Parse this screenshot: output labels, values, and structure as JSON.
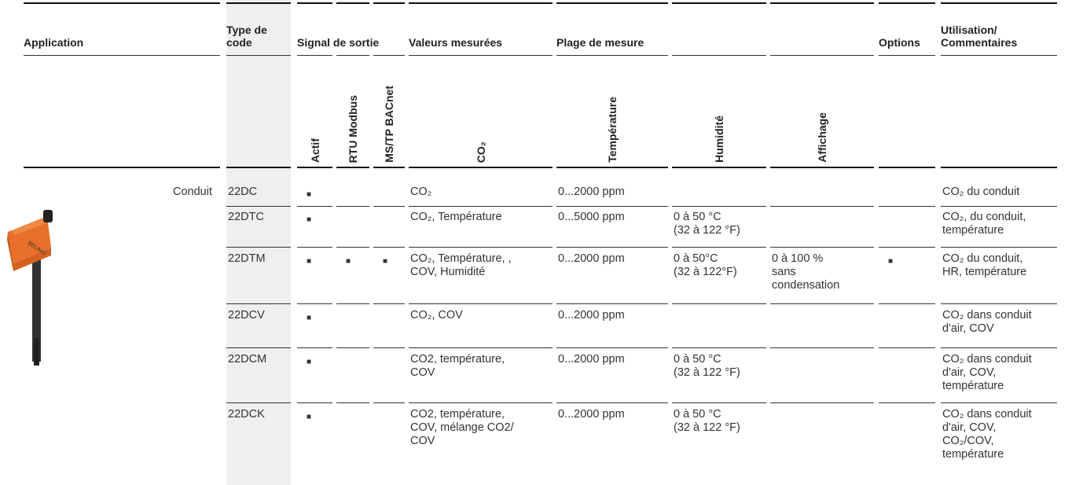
{
  "header": {
    "groups": [
      "Application",
      "Type de\ncode",
      "Signal de sortie",
      "Valeurs mesurées",
      "Plage de mesure",
      "Options",
      "Utilisation/\nCommentaires"
    ],
    "subcolumns": [
      "Actif",
      "RTU Modbus",
      "MS/TP BACnet",
      "CO₂",
      "Température",
      "Humidité",
      "Affichage"
    ]
  },
  "application": "Conduit",
  "rows": [
    [
      "22DC",
      "■",
      null,
      null,
      "CO₂",
      "0...2000 ppm",
      null,
      null,
      null,
      "CO₂ du conduit"
    ],
    [
      "22DTC",
      "■",
      null,
      null,
      "CO₂, Température",
      "0...5000 ppm",
      "0 à 50 °C\n(32 à 122 °F)",
      null,
      null,
      "CO₂, du conduit,\ntempérature"
    ],
    [
      "22DTM",
      "■",
      "■",
      "■",
      "CO₂, Température, ,\nCOV, Humidité",
      "0...2000 ppm",
      "0 à 50°C\n(32 à 122°F)",
      "0 à 100 %\nsans\ncondensation",
      "■",
      "CO₂ du conduit,\nHR, température"
    ],
    [
      "22DCV",
      "■",
      null,
      null,
      "CO₂, COV",
      "0...2000 ppm",
      null,
      null,
      null,
      "CO₂ dans conduit\nd'air, COV"
    ],
    [
      "22DCM",
      "■",
      null,
      null,
      "CO2, température,\nCOV",
      "0...2000 ppm",
      "0 à 50 °C\n(32 à 122 °F)",
      null,
      null,
      "CO₂ dans conduit\nd'air, COV,\ntempérature"
    ],
    [
      "22DCK",
      "■",
      null,
      null,
      "CO2, température,\nCOV, mélange CO2/\nCOV",
      "0...2000 ppm",
      "0 à 50 °C\n(32 à 122 °F)",
      null,
      null,
      "CO₂ dans conduit\nd'air, COV,\nCO₂/COV,\ntempérature"
    ]
  ]
}
